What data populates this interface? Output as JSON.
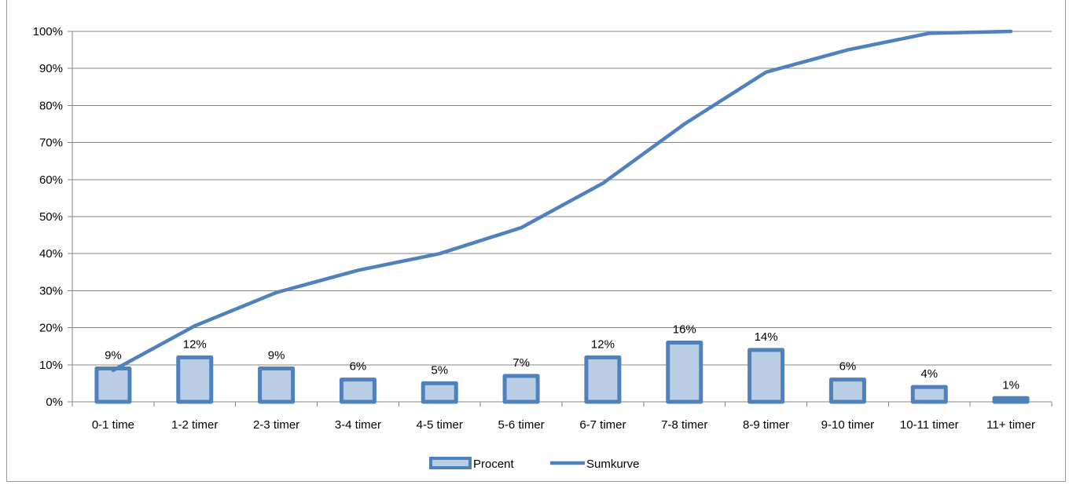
{
  "chart_data": {
    "type": "bar",
    "categories": [
      "0-1 time",
      "1-2 timer",
      "2-3 timer",
      "3-4 timer",
      "4-5 timer",
      "5-6 timer",
      "6-7 timer",
      "7-8 timer",
      "8-9 timer",
      "9-10 timer",
      "10-11 timer",
      "11+ timer"
    ],
    "series": [
      {
        "name": "Procent",
        "kind": "bar",
        "values": [
          9,
          12,
          9,
          6,
          5,
          7,
          12,
          16,
          14,
          6,
          4,
          1
        ],
        "data_labels": [
          "9%",
          "12%",
          "9%",
          "6%",
          "5%",
          "7%",
          "12%",
          "16%",
          "14%",
          "6%",
          "4%",
          "1%"
        ]
      },
      {
        "name": "Sumkurve",
        "kind": "line",
        "values": [
          8.5,
          20.5,
          29.5,
          35.5,
          40,
          47,
          59,
          75,
          89,
          95,
          99.5,
          100
        ]
      }
    ],
    "title": "",
    "xlabel": "",
    "ylabel": "",
    "ylim": [
      0,
      100
    ],
    "yticks": [
      "0%",
      "10%",
      "20%",
      "30%",
      "40%",
      "50%",
      "60%",
      "70%",
      "80%",
      "90%",
      "100%"
    ],
    "grid": true,
    "legend_position": "bottom",
    "colors": {
      "bar_fill": "#b9cde5",
      "bar_stroke": "#4f81bd",
      "line": "#4f81bd",
      "gridline": "#868686",
      "axis": "#868686"
    }
  }
}
